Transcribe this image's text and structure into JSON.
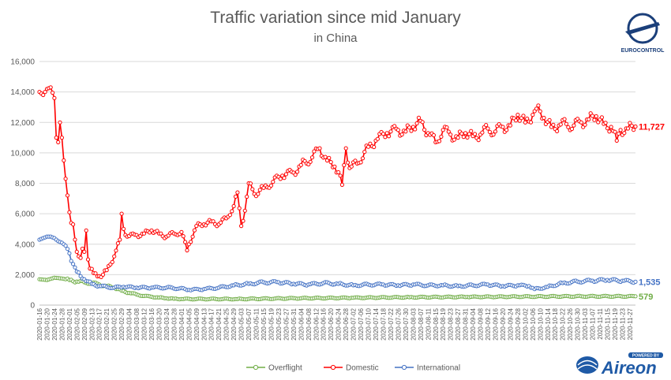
{
  "chart_data": {
    "type": "line",
    "title": "Traffic variation since mid January",
    "subtitle": "in China",
    "ylim": [
      0,
      16000
    ],
    "yticks": [
      "0",
      "2,000",
      "4,000",
      "6,000",
      "8,000",
      "10,000",
      "12,000",
      "14,000",
      "16,000"
    ],
    "grid": true,
    "legend_position": "bottom",
    "x_labels": [
      "2020-01-16",
      "2020-01-20",
      "2020-01-24",
      "2020-01-28",
      "2020-02-01",
      "2020-02-05",
      "2020-02-09",
      "2020-02-13",
      "2020-02-17",
      "2020-02-21",
      "2020-02-25",
      "2020-02-29",
      "2020-03-04",
      "2020-03-08",
      "2020-03-12",
      "2020-03-16",
      "2020-03-20",
      "2020-03-24",
      "2020-03-28",
      "2020-04-01",
      "2020-04-05",
      "2020-04-09",
      "2020-04-13",
      "2020-04-17",
      "2020-04-21",
      "2020-04-25",
      "2020-04-29",
      "2020-05-03",
      "2020-05-07",
      "2020-05-11",
      "2020-05-15",
      "2020-05-19",
      "2020-05-23",
      "2020-05-27",
      "2020-05-31",
      "2020-06-04",
      "2020-06-08",
      "2020-06-12",
      "2020-06-16",
      "2020-06-20",
      "2020-06-24",
      "2020-06-28",
      "2020-07-02",
      "2020-07-06",
      "2020-07-10",
      "2020-07-14",
      "2020-07-18",
      "2020-07-22",
      "2020-07-26",
      "2020-07-30",
      "2020-08-03",
      "2020-08-07",
      "2020-08-11",
      "2020-08-15",
      "2020-08-19",
      "2020-08-23",
      "2020-08-27",
      "2020-08-31",
      "2020-09-04",
      "2020-09-08",
      "2020-09-12",
      "2020-09-16",
      "2020-09-20",
      "2020-09-24",
      "2020-09-28",
      "2020-10-02",
      "2020-10-06",
      "2020-10-10",
      "2020-10-14",
      "2020-10-18",
      "2020-10-22",
      "2020-10-26",
      "2020-10-30",
      "2020-11-03",
      "2020-11-07",
      "2020-11-11",
      "2020-11-15",
      "2020-11-19",
      "2020-11-23",
      "2020-11-27"
    ],
    "series": [
      {
        "name": "Overflight",
        "color": "#70ad47",
        "end_label": "579",
        "anchors": [
          [
            "2020-01-16",
            1700
          ],
          [
            "2020-01-20",
            1650
          ],
          [
            "2020-01-24",
            1800
          ],
          [
            "2020-01-28",
            1750
          ],
          [
            "2020-02-01",
            1650
          ],
          [
            "2020-02-05",
            1550
          ],
          [
            "2020-02-09",
            1500
          ],
          [
            "2020-02-13",
            1450
          ],
          [
            "2020-02-17",
            1350
          ],
          [
            "2020-02-21",
            1250
          ],
          [
            "2020-02-25",
            1150
          ],
          [
            "2020-02-29",
            950
          ],
          [
            "2020-03-04",
            800
          ],
          [
            "2020-03-08",
            700
          ],
          [
            "2020-03-12",
            600
          ],
          [
            "2020-03-16",
            550
          ],
          [
            "2020-03-20",
            500
          ],
          [
            "2020-03-24",
            450
          ],
          [
            "2020-03-28",
            420
          ],
          [
            "2020-04-01",
            400
          ],
          [
            "2020-04-13",
            400
          ],
          [
            "2020-05-01",
            400
          ],
          [
            "2020-06-01",
            450
          ],
          [
            "2020-07-01",
            480
          ],
          [
            "2020-08-01",
            520
          ],
          [
            "2020-09-01",
            540
          ],
          [
            "2020-10-01",
            560
          ],
          [
            "2020-11-01",
            580
          ],
          [
            "2020-11-30",
            579
          ]
        ]
      },
      {
        "name": "Domestic",
        "color": "#ff0000",
        "end_label": "11,727",
        "anchors": [
          [
            "2020-01-16",
            14000
          ],
          [
            "2020-01-18",
            13800
          ],
          [
            "2020-01-20",
            14200
          ],
          [
            "2020-01-22",
            14300
          ],
          [
            "2020-01-24",
            13600
          ],
          [
            "2020-01-25",
            11000
          ],
          [
            "2020-01-26",
            10700
          ],
          [
            "2020-01-27",
            12000
          ],
          [
            "2020-01-28",
            11000
          ],
          [
            "2020-01-29",
            9500
          ],
          [
            "2020-01-30",
            8300
          ],
          [
            "2020-01-31",
            7200
          ],
          [
            "2020-02-01",
            6100
          ],
          [
            "2020-02-02",
            5400
          ],
          [
            "2020-02-03",
            5300
          ],
          [
            "2020-02-04",
            4300
          ],
          [
            "2020-02-05",
            3500
          ],
          [
            "2020-02-06",
            3200
          ],
          [
            "2020-02-07",
            3100
          ],
          [
            "2020-02-08",
            3700
          ],
          [
            "2020-02-09",
            3500
          ],
          [
            "2020-02-10",
            4900
          ],
          [
            "2020-02-11",
            3000
          ],
          [
            "2020-02-12",
            2400
          ],
          [
            "2020-02-14",
            2100
          ],
          [
            "2020-02-17",
            1900
          ],
          [
            "2020-02-19",
            2000
          ],
          [
            "2020-02-21",
            2300
          ],
          [
            "2020-02-25",
            3200
          ],
          [
            "2020-02-28",
            4300
          ],
          [
            "2020-02-29",
            6000
          ],
          [
            "2020-03-01",
            5000
          ],
          [
            "2020-03-03",
            4500
          ],
          [
            "2020-03-08",
            4600
          ],
          [
            "2020-03-12",
            4700
          ],
          [
            "2020-03-16",
            4900
          ],
          [
            "2020-03-20",
            4700
          ],
          [
            "2020-03-24",
            4500
          ],
          [
            "2020-03-28",
            4700
          ],
          [
            "2020-04-01",
            4800
          ],
          [
            "2020-04-04",
            3600
          ],
          [
            "2020-04-05",
            4000
          ],
          [
            "2020-04-09",
            5200
          ],
          [
            "2020-04-13",
            5300
          ],
          [
            "2020-04-17",
            5500
          ],
          [
            "2020-04-21",
            5300
          ],
          [
            "2020-04-25",
            5700
          ],
          [
            "2020-04-29",
            6500
          ],
          [
            "2020-05-01",
            7400
          ],
          [
            "2020-05-03",
            5200
          ],
          [
            "2020-05-05",
            6200
          ],
          [
            "2020-05-07",
            8000
          ],
          [
            "2020-05-10",
            7300
          ],
          [
            "2020-05-15",
            7700
          ],
          [
            "2020-05-20",
            8100
          ],
          [
            "2020-05-25",
            8500
          ],
          [
            "2020-05-31",
            8700
          ],
          [
            "2020-06-04",
            9200
          ],
          [
            "2020-06-10",
            9700
          ],
          [
            "2020-06-14",
            10300
          ],
          [
            "2020-06-18",
            9500
          ],
          [
            "2020-06-22",
            9100
          ],
          [
            "2020-06-25",
            8500
          ],
          [
            "2020-06-26",
            7900
          ],
          [
            "2020-06-28",
            10300
          ],
          [
            "2020-06-30",
            9000
          ],
          [
            "2020-07-04",
            9300
          ],
          [
            "2020-07-10",
            10400
          ],
          [
            "2020-07-14",
            10800
          ],
          [
            "2020-07-20",
            11300
          ],
          [
            "2020-07-26",
            11500
          ],
          [
            "2020-07-30",
            11400
          ],
          [
            "2020-08-03",
            11700
          ],
          [
            "2020-08-07",
            12100
          ],
          [
            "2020-08-11",
            11300
          ],
          [
            "2020-08-15",
            10700
          ],
          [
            "2020-08-19",
            11500
          ],
          [
            "2020-08-23",
            11200
          ],
          [
            "2020-08-27",
            11000
          ],
          [
            "2020-08-31",
            11300
          ],
          [
            "2020-09-04",
            11100
          ],
          [
            "2020-09-08",
            11200
          ],
          [
            "2020-09-12",
            11600
          ],
          [
            "2020-09-16",
            11400
          ],
          [
            "2020-09-20",
            11700
          ],
          [
            "2020-09-24",
            11800
          ],
          [
            "2020-09-28",
            12500
          ],
          [
            "2020-10-02",
            12000
          ],
          [
            "2020-10-06",
            12500
          ],
          [
            "2020-10-08",
            12900
          ],
          [
            "2020-10-12",
            12300
          ],
          [
            "2020-10-16",
            11700
          ],
          [
            "2020-10-20",
            11800
          ],
          [
            "2020-10-24",
            11900
          ],
          [
            "2020-10-28",
            11800
          ],
          [
            "2020-11-01",
            12000
          ],
          [
            "2020-11-05",
            12200
          ],
          [
            "2020-11-09",
            12400
          ],
          [
            "2020-11-13",
            11900
          ],
          [
            "2020-11-17",
            11700
          ],
          [
            "2020-11-20",
            10800
          ],
          [
            "2020-11-22",
            11500
          ],
          [
            "2020-11-26",
            11600
          ],
          [
            "2020-11-30",
            11727
          ]
        ]
      },
      {
        "name": "International",
        "color": "#4472c4",
        "end_label": "1,535",
        "anchors": [
          [
            "2020-01-16",
            4300
          ],
          [
            "2020-01-18",
            4400
          ],
          [
            "2020-01-20",
            4500
          ],
          [
            "2020-01-22",
            4500
          ],
          [
            "2020-01-24",
            4400
          ],
          [
            "2020-01-26",
            4200
          ],
          [
            "2020-01-28",
            4100
          ],
          [
            "2020-01-30",
            3900
          ],
          [
            "2020-02-01",
            3400
          ],
          [
            "2020-02-03",
            2700
          ],
          [
            "2020-02-05",
            2200
          ],
          [
            "2020-02-07",
            1900
          ],
          [
            "2020-02-09",
            1700
          ],
          [
            "2020-02-13",
            1400
          ],
          [
            "2020-02-17",
            1250
          ],
          [
            "2020-02-21",
            1200
          ],
          [
            "2020-02-25",
            1150
          ],
          [
            "2020-03-01",
            1200
          ],
          [
            "2020-03-08",
            1150
          ],
          [
            "2020-03-16",
            1150
          ],
          [
            "2020-03-24",
            1150
          ],
          [
            "2020-03-31",
            1100
          ],
          [
            "2020-04-05",
            1000
          ],
          [
            "2020-04-13",
            1050
          ],
          [
            "2020-04-21",
            1150
          ],
          [
            "2020-04-29",
            1300
          ],
          [
            "2020-05-07",
            1400
          ],
          [
            "2020-05-15",
            1500
          ],
          [
            "2020-05-23",
            1500
          ],
          [
            "2020-05-31",
            1400
          ],
          [
            "2020-06-08",
            1350
          ],
          [
            "2020-06-16",
            1450
          ],
          [
            "2020-06-24",
            1400
          ],
          [
            "2020-07-02",
            1300
          ],
          [
            "2020-07-10",
            1350
          ],
          [
            "2020-07-18",
            1350
          ],
          [
            "2020-07-26",
            1300
          ],
          [
            "2020-08-03",
            1350
          ],
          [
            "2020-08-11",
            1300
          ],
          [
            "2020-08-19",
            1300
          ],
          [
            "2020-08-27",
            1250
          ],
          [
            "2020-09-04",
            1300
          ],
          [
            "2020-09-12",
            1350
          ],
          [
            "2020-09-20",
            1250
          ],
          [
            "2020-09-28",
            1300
          ],
          [
            "2020-10-04",
            1250
          ],
          [
            "2020-10-07",
            1050
          ],
          [
            "2020-10-14",
            1200
          ],
          [
            "2020-10-22",
            1450
          ],
          [
            "2020-10-30",
            1550
          ],
          [
            "2020-11-07",
            1600
          ],
          [
            "2020-11-15",
            1650
          ],
          [
            "2020-11-23",
            1600
          ],
          [
            "2020-11-30",
            1535
          ]
        ]
      }
    ]
  },
  "logos": {
    "eurocontrol_text": "EUROCONTROL",
    "aireon_text": "Aireon",
    "aireon_badge": "POWERED BY"
  }
}
